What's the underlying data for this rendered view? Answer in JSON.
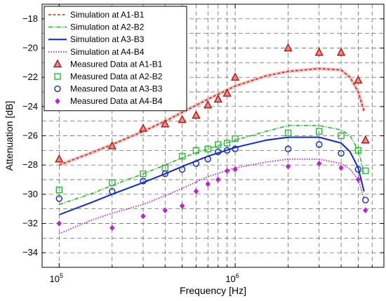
{
  "chart_data": {
    "type": "line",
    "title": "",
    "xlabel": "Frequency [Hz]",
    "ylabel": "Attenuation [dB]",
    "xscale": "log",
    "xlim": [
      80000,
      7000000
    ],
    "ylim": [
      -35,
      -17
    ],
    "grid": true,
    "legend_position": "top-left",
    "x_ticks": [
      {
        "value": 100000,
        "base": "10",
        "exp": "5"
      },
      {
        "value": 1000000,
        "base": "10",
        "exp": "6"
      }
    ],
    "y_ticks": [
      -34,
      -32,
      -30,
      -28,
      -26,
      -24,
      -22,
      -20,
      -18
    ],
    "series": [
      {
        "name": "Simulation at A1-B1",
        "kind": "line",
        "color": "#b03a00",
        "dash": "4,2.5",
        "width": 1.6,
        "glow": "#f2b8c6",
        "x": [
          100000,
          150000,
          200000,
          300000,
          400000,
          500000,
          700000,
          1000000,
          1500000,
          2000000,
          3000000,
          4000000,
          4500000,
          5000000,
          5400000
        ],
        "y": [
          -28.0,
          -27.2,
          -26.6,
          -25.7,
          -25.0,
          -24.4,
          -23.5,
          -22.6,
          -21.9,
          -21.6,
          -21.4,
          -21.5,
          -22.0,
          -23.0,
          -24.3
        ]
      },
      {
        "name": "Simulation at A2-B2",
        "kind": "line",
        "color": "#22c02a",
        "dash": "6,2,1.5,2",
        "width": 1.6,
        "x": [
          100000,
          150000,
          200000,
          300000,
          400000,
          500000,
          700000,
          1000000,
          1500000,
          2000000,
          3000000,
          4000000,
          4500000,
          5000000,
          5400000
        ],
        "y": [
          -30.7,
          -30.0,
          -29.4,
          -28.6,
          -28.0,
          -27.5,
          -26.9,
          -26.3,
          -25.7,
          -25.3,
          -25.3,
          -25.6,
          -26.0,
          -27.0,
          -28.5
        ]
      },
      {
        "name": "Simulation at A3-B3",
        "kind": "line",
        "color": "#0a2ad0",
        "dash": "",
        "width": 2.0,
        "x": [
          100000,
          150000,
          200000,
          300000,
          400000,
          500000,
          700000,
          1000000,
          1500000,
          2000000,
          3000000,
          4000000,
          4500000,
          5000000,
          5400000
        ],
        "y": [
          -31.4,
          -30.6,
          -30.0,
          -29.2,
          -28.6,
          -28.1,
          -27.4,
          -26.8,
          -26.3,
          -26.1,
          -26.1,
          -26.5,
          -27.1,
          -28.2,
          -29.8
        ]
      },
      {
        "name": "Simulation at A4-B4",
        "kind": "line",
        "color": "#c020d8",
        "dash": "1.5,2",
        "width": 1.8,
        "x": [
          100000,
          150000,
          200000,
          300000,
          400000,
          500000,
          700000,
          1000000,
          1500000,
          2000000,
          3000000,
          4000000,
          4500000,
          5000000,
          5400000
        ],
        "y": [
          -32.7,
          -31.8,
          -31.3,
          -30.7,
          -30.1,
          -29.6,
          -28.8,
          -28.2,
          -27.8,
          -27.6,
          -27.6,
          -27.9,
          -28.3,
          -29.0,
          -30.3
        ]
      },
      {
        "name": "Measured Data at A1-B1",
        "kind": "marker",
        "marker": "triangle",
        "color": "#b01a00",
        "fill": "#e8889a",
        "x": [
          100000,
          200000,
          300000,
          400000,
          500000,
          600000,
          700000,
          800000,
          900000,
          1000000,
          2000000,
          3000000,
          4000000,
          5000000,
          5500000
        ],
        "y": [
          -27.6,
          -26.7,
          -25.5,
          -25.2,
          -24.9,
          -24.6,
          -23.9,
          -23.5,
          -23.1,
          -22.0,
          -20.0,
          -20.3,
          -20.3,
          -22.2,
          -26.3
        ]
      },
      {
        "name": "Measured Data at A2-B2",
        "kind": "marker",
        "marker": "square",
        "color": "#22c02a",
        "fill": "none",
        "x": [
          100000,
          200000,
          300000,
          400000,
          500000,
          600000,
          700000,
          800000,
          900000,
          1000000,
          2000000,
          3000000,
          4000000,
          5000000,
          5500000
        ],
        "y": [
          -29.7,
          -29.2,
          -28.6,
          -28.2,
          -27.4,
          -27.0,
          -26.9,
          -26.6,
          -26.5,
          -26.2,
          -25.8,
          -25.7,
          -26.0,
          -27.0,
          -28.4
        ]
      },
      {
        "name": "Measured Data at A3-B3",
        "kind": "marker",
        "marker": "circle",
        "color": "#0a2ad0",
        "fill": "none",
        "x": [
          100000,
          200000,
          300000,
          400000,
          500000,
          600000,
          700000,
          800000,
          900000,
          1000000,
          2000000,
          3000000,
          4000000,
          5000000,
          5500000
        ],
        "y": [
          -30.3,
          -29.8,
          -29.1,
          -28.6,
          -28.3,
          -27.9,
          -27.6,
          -27.1,
          -27.0,
          -26.9,
          -26.9,
          -26.6,
          -27.2,
          -28.3,
          -30.4
        ]
      },
      {
        "name": "Measured Data at A4-B4",
        "kind": "marker",
        "marker": "diamond",
        "color": "#c020d8",
        "fill": "#c020d8",
        "x": [
          100000,
          200000,
          300000,
          400000,
          500000,
          600000,
          700000,
          800000,
          900000,
          1000000,
          2000000,
          3000000,
          4000000,
          5000000,
          5500000
        ],
        "y": [
          -32.0,
          -32.3,
          -31.5,
          -31.1,
          -30.8,
          -29.8,
          -29.3,
          -29.0,
          -28.4,
          -28.3,
          -28.1,
          -27.9,
          -28.2,
          -29.0,
          -31.1
        ]
      }
    ]
  }
}
